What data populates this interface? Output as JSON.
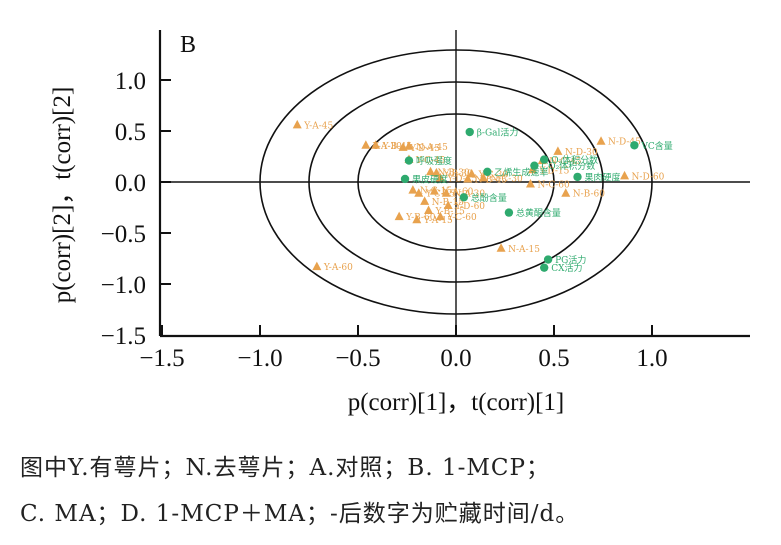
{
  "chart_data": {
    "type": "scatter",
    "panel_label": "B",
    "xlabel": "p(corr)[1]，t(corr)[1]",
    "ylabel": "p(corr)[2]，t(corr)[2]",
    "xlim": [
      -1.5,
      1.5
    ],
    "ylim": [
      -1.5,
      1.45
    ],
    "xticks": [
      -1.5,
      -1.0,
      -0.5,
      0.0,
      0.5,
      1.0
    ],
    "xtick_labels": [
      "−1.5",
      "−1.0",
      "−0.5",
      "0.0",
      "0.5",
      "1.0"
    ],
    "yticks": [
      1.0,
      0.5,
      0.0,
      -0.5,
      -1.0,
      -1.5
    ],
    "ytick_labels": [
      "1.0",
      "0.5",
      "0.0",
      "−0.5",
      "−1.0",
      "−1.5"
    ],
    "grid": false,
    "reference_lines": {
      "x": 0,
      "y": 0
    },
    "ellipses": [
      {
        "rx": 1.0,
        "ry": 1.0,
        "label": "outer"
      },
      {
        "rx": 0.75,
        "ry": 0.75,
        "label": "middle"
      },
      {
        "rx": 0.5,
        "ry": 0.5,
        "label": "inner"
      }
    ],
    "series": [
      {
        "name": "samples",
        "marker": "triangle",
        "color": "#E8A24E",
        "points": [
          {
            "label": "Y-A-45",
            "x": -0.81,
            "y": 0.56
          },
          {
            "label": "Y-B-45",
            "x": -0.41,
            "y": 0.36
          },
          {
            "label": "Y-A-30",
            "x": -0.46,
            "y": 0.36
          },
          {
            "label": "Y-D-45",
            "x": -0.27,
            "y": 0.34
          },
          {
            "label": "N-A-45",
            "x": -0.24,
            "y": 0.35
          },
          {
            "label": "Y-C-45",
            "x": -0.24,
            "y": 0.22
          },
          {
            "label": "N-B-30",
            "x": -0.13,
            "y": 0.1
          },
          {
            "label": "Y-B-30",
            "x": -0.1,
            "y": 0.09
          },
          {
            "label": "Y-D-15",
            "x": -0.08,
            "y": 0.04
          },
          {
            "label": "Y-C-30",
            "x": 0.08,
            "y": 0.08
          },
          {
            "label": "N-C-30",
            "x": 0.14,
            "y": 0.04
          },
          {
            "label": "N-B-45",
            "x": 0.06,
            "y": 0.03
          },
          {
            "label": "N-C-15",
            "x": -0.22,
            "y": -0.08
          },
          {
            "label": "Y-C-15",
            "x": -0.19,
            "y": -0.11
          },
          {
            "label": "N-A-60",
            "x": -0.11,
            "y": -0.09
          },
          {
            "label": "N-A-30",
            "x": -0.05,
            "y": -0.11
          },
          {
            "label": "N-B-15",
            "x": -0.16,
            "y": -0.19
          },
          {
            "label": "Y-B-15",
            "x": -0.14,
            "y": -0.28
          },
          {
            "label": "Y-D-60",
            "x": -0.04,
            "y": -0.23
          },
          {
            "label": "Y-B-60",
            "x": -0.29,
            "y": -0.34
          },
          {
            "label": "Y-A-15",
            "x": -0.2,
            "y": -0.37
          },
          {
            "label": "Y-C-60",
            "x": -0.08,
            "y": -0.34
          },
          {
            "label": "N-A-15",
            "x": 0.23,
            "y": -0.65
          },
          {
            "label": "Y-A-60",
            "x": -0.71,
            "y": -0.83
          },
          {
            "label": "N-D-45",
            "x": 0.74,
            "y": 0.4
          },
          {
            "label": "N-D-30",
            "x": 0.52,
            "y": 0.3
          },
          {
            "label": "N-C-45",
            "x": 0.44,
            "y": 0.21
          },
          {
            "label": "Y-D-15b",
            "x": 0.39,
            "y": 0.12
          },
          {
            "label": "N-C-60",
            "x": 0.38,
            "y": -0.02
          },
          {
            "label": "N-D-60",
            "x": 0.86,
            "y": 0.06
          },
          {
            "label": "N-B-60",
            "x": 0.56,
            "y": -0.11
          }
        ]
      },
      {
        "name": "variables",
        "marker": "circle",
        "color": "#2EAA6E",
        "points": [
          {
            "label": "β-Gal活力",
            "x": 0.07,
            "y": 0.49
          },
          {
            "label": "呼吸强度",
            "x": -0.24,
            "y": 0.21
          },
          {
            "label": "果皮硬度",
            "x": -0.26,
            "y": 0.03
          },
          {
            "label": "CO₂体积分数",
            "x": 0.4,
            "y": 0.16
          },
          {
            "label": "O₂体积分数",
            "x": 0.45,
            "y": 0.22
          },
          {
            "label": "乙烯生成速率",
            "x": 0.16,
            "y": 0.1
          },
          {
            "label": "VC含量",
            "x": 0.91,
            "y": 0.36
          },
          {
            "label": "果肉硬度",
            "x": 0.62,
            "y": 0.05
          },
          {
            "label": "总酚含量",
            "x": 0.04,
            "y": -0.15
          },
          {
            "label": "总黄酮含量",
            "x": 0.27,
            "y": -0.3
          },
          {
            "label": "PG活力",
            "x": 0.47,
            "y": -0.76
          },
          {
            "label": "CX活力",
            "x": 0.45,
            "y": -0.84
          }
        ]
      }
    ]
  },
  "caption": {
    "line1": "图中Y.有萼片；N.去萼片；A.对照；B. 1-MCP；",
    "line2": "C. MA；D. 1-MCP＋MA；-后数字为贮藏时间/d。"
  },
  "display_labels": {
    "Y-D-15b": "Y-D-15",
    "N-C-60": "N-C-60"
  }
}
